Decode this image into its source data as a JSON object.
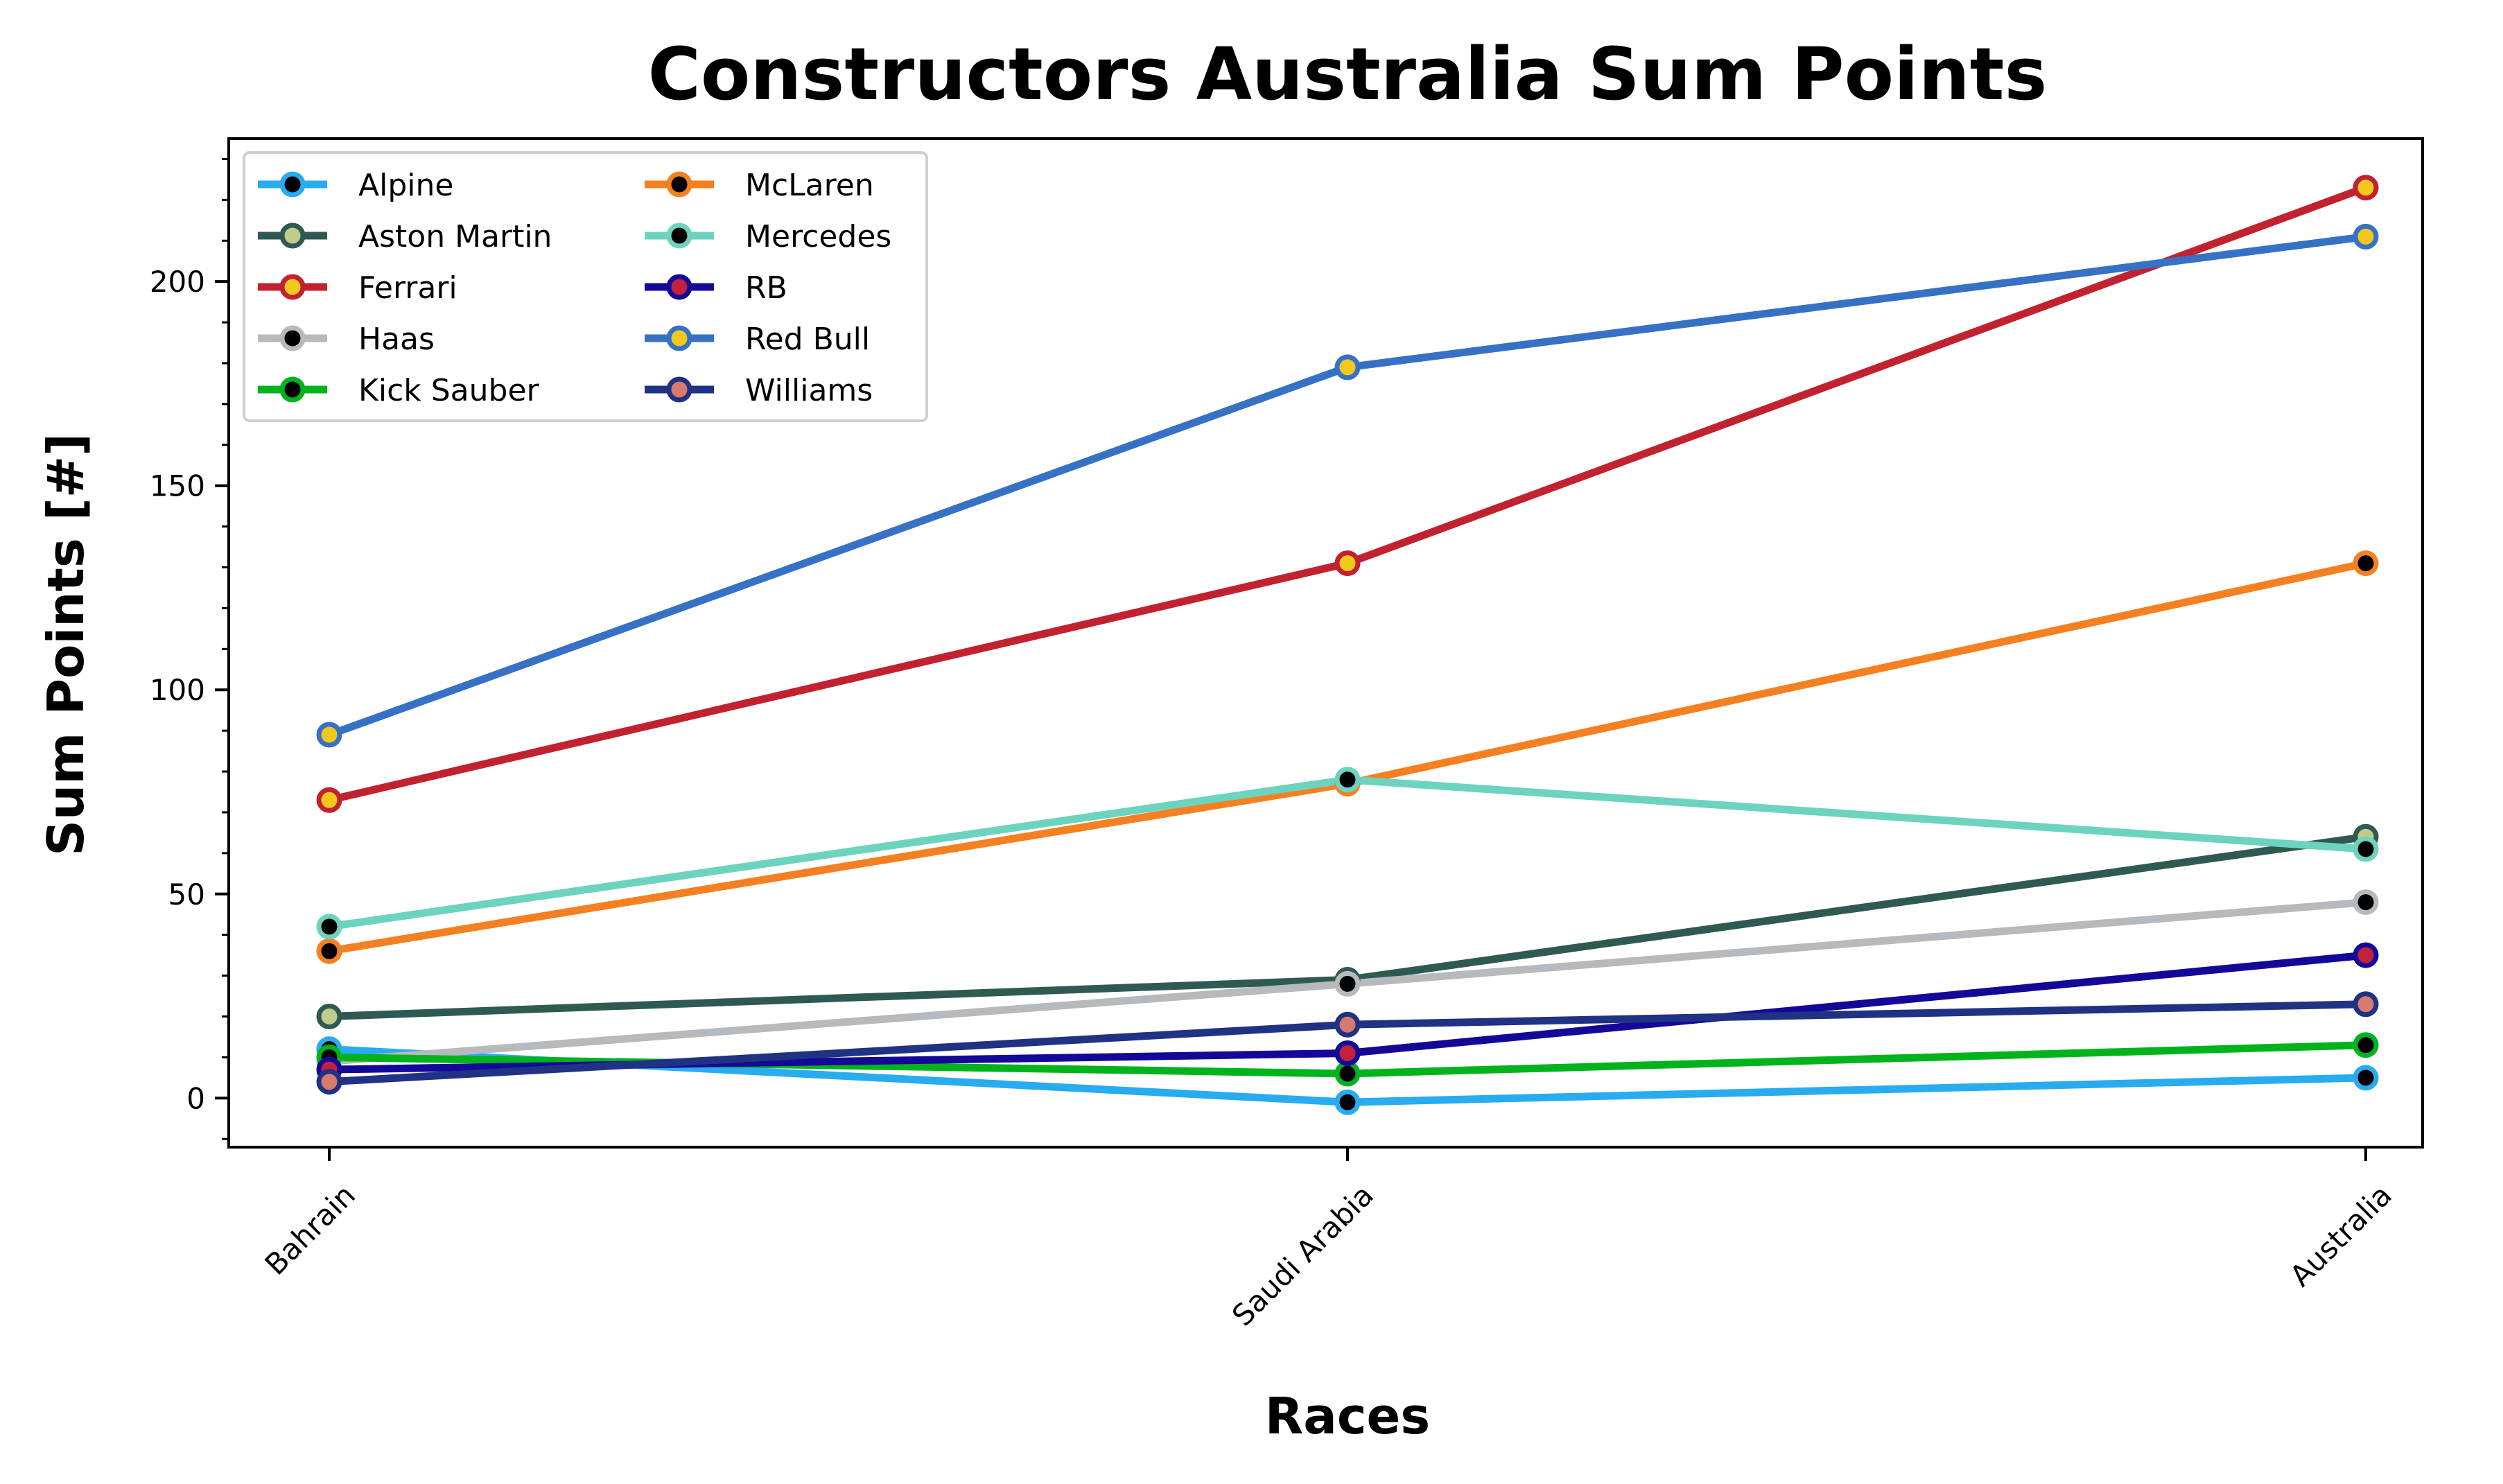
{
  "chart_data": {
    "type": "line",
    "title": "Constructors Australia Sum Points",
    "xlabel": "Races",
    "ylabel": "Sum Points [#]",
    "categories": [
      "Bahrain",
      "Saudi Arabia",
      "Australia"
    ],
    "ylim": [
      -12,
      235
    ],
    "yticks": [
      0,
      50,
      100,
      150,
      200
    ],
    "grid": false,
    "legend_position": "upper-left",
    "legend_columns": 2,
    "series": [
      {
        "name": "Alpine",
        "values": [
          12,
          -1,
          5
        ],
        "color": "#29abf0",
        "marker_color": "#000000"
      },
      {
        "name": "Aston Martin",
        "values": [
          20,
          29,
          64
        ],
        "color": "#2f5a52",
        "marker_color": "#c2cc8a"
      },
      {
        "name": "Ferrari",
        "values": [
          73,
          131,
          223
        ],
        "color": "#c2222f",
        "marker_color": "#f2c81e"
      },
      {
        "name": "Haas",
        "values": [
          9,
          28,
          48
        ],
        "color": "#b6babd",
        "marker_color": "#000000"
      },
      {
        "name": "Kick Sauber",
        "values": [
          10,
          6,
          13
        ],
        "color": "#00b31c",
        "marker_color": "#000000"
      },
      {
        "name": "McLaren",
        "values": [
          36,
          77,
          131
        ],
        "color": "#f58021",
        "marker_color": "#000000"
      },
      {
        "name": "Mercedes",
        "values": [
          42,
          78,
          61
        ],
        "color": "#6cd3bf",
        "marker_color": "#000000"
      },
      {
        "name": "RB",
        "values": [
          7,
          11,
          35
        ],
        "color": "#140899",
        "marker_color": "#c2223c"
      },
      {
        "name": "Red Bull",
        "values": [
          89,
          179,
          211
        ],
        "color": "#3671c6",
        "marker_color": "#f2c81e"
      },
      {
        "name": "Williams",
        "values": [
          4,
          18,
          23
        ],
        "color": "#1f3284",
        "marker_color": "#d97b6c"
      }
    ]
  }
}
